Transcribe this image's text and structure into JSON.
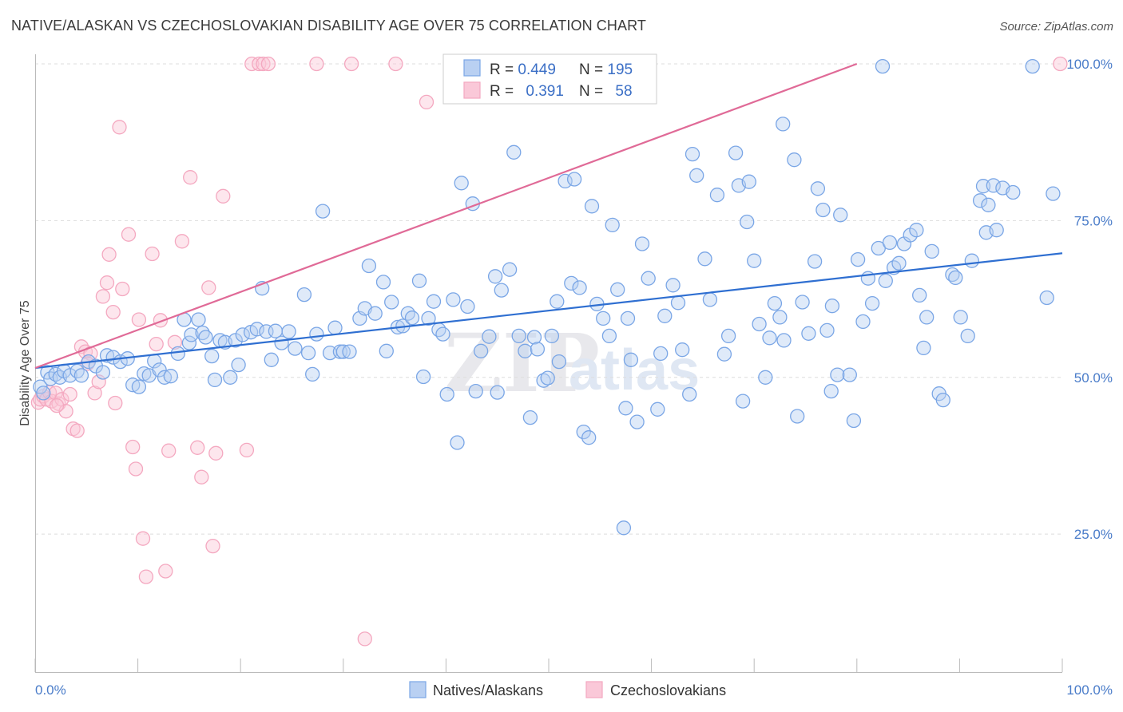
{
  "title": "NATIVE/ALASKAN VS CZECHOSLOVAKIAN DISABILITY AGE OVER 75 CORRELATION CHART",
  "source": "Source: ZipAtlas.com",
  "watermark": {
    "zip": "ZIP",
    "atlas": "atlas"
  },
  "chart_data": {
    "type": "scatter",
    "title": "NATIVE/ALASKAN VS CZECHOSLOVAKIAN DISABILITY AGE OVER 75 CORRELATION CHART",
    "xlabel": "",
    "ylabel": "Disability Age Over 75",
    "xlim": [
      0,
      100
    ],
    "ylim": [
      3,
      100
    ],
    "x_tick_labels": [
      "0.0%",
      "100.0%"
    ],
    "y_ticks": [
      25,
      50,
      75,
      100
    ],
    "y_tick_labels": [
      "25.0%",
      "50.0%",
      "75.0%",
      "100.0%"
    ],
    "grid": true,
    "legend_position": "top-center",
    "stats": [
      {
        "r_label": "R = ",
        "r_value": "0.449",
        "n_label": "N = ",
        "n_value": "195"
      },
      {
        "r_label": "R = ",
        "r_value": "0.391",
        "n_label": "N = ",
        "n_value": "58"
      }
    ],
    "series": [
      {
        "name": "Natives/Alaskans",
        "color": "#7aa6e6",
        "trend_color": "#2f6fd1",
        "trend": [
          [
            0,
            51.5
          ],
          [
            100,
            69.8
          ]
        ],
        "points": [
          [
            0.5,
            48.5
          ],
          [
            0.8,
            47.5
          ],
          [
            1.2,
            50.8
          ],
          [
            1.5,
            49.8
          ],
          [
            2,
            50.5
          ],
          [
            2.4,
            50
          ],
          [
            2.8,
            51
          ],
          [
            3.4,
            50.3
          ],
          [
            4.1,
            51
          ],
          [
            4.5,
            50.3
          ],
          [
            5.2,
            52.5
          ],
          [
            5.9,
            51.8
          ],
          [
            6.6,
            50.8
          ],
          [
            7,
            53.5
          ],
          [
            7.6,
            53.2
          ],
          [
            8.3,
            52.5
          ],
          [
            9,
            53
          ],
          [
            9.5,
            48.8
          ],
          [
            10.1,
            48.5
          ],
          [
            10.6,
            50.6
          ],
          [
            11.1,
            50.3
          ],
          [
            11.6,
            52.6
          ],
          [
            12.1,
            51.2
          ],
          [
            12.6,
            50
          ],
          [
            13.2,
            50.2
          ],
          [
            13.9,
            53.8
          ],
          [
            14.5,
            59.2
          ],
          [
            15,
            55.5
          ],
          [
            15.2,
            56.8
          ],
          [
            15.9,
            59.2
          ],
          [
            16.3,
            57.1
          ],
          [
            16.6,
            56.4
          ],
          [
            17.2,
            53.4
          ],
          [
            17.5,
            49.6
          ],
          [
            18,
            55.9
          ],
          [
            18.5,
            55.6
          ],
          [
            19,
            50
          ],
          [
            19.5,
            55.9
          ],
          [
            20.2,
            56.8
          ],
          [
            19.8,
            52
          ],
          [
            21,
            57.2
          ],
          [
            21.6,
            57.7
          ],
          [
            22.1,
            64.2
          ],
          [
            22.5,
            57.3
          ],
          [
            23,
            52.8
          ],
          [
            23.4,
            57.4
          ],
          [
            24,
            55.5
          ],
          [
            24.7,
            57.3
          ],
          [
            25.3,
            54.6
          ],
          [
            26.2,
            63.2
          ],
          [
            26.6,
            53.9
          ],
          [
            27,
            50.5
          ],
          [
            27.4,
            56.9
          ],
          [
            28,
            76.5
          ],
          [
            28.7,
            53.9
          ],
          [
            29.2,
            57.9
          ],
          [
            29.7,
            54.1
          ],
          [
            30,
            54.1
          ],
          [
            30.6,
            54.1
          ],
          [
            31.6,
            59.4
          ],
          [
            32.1,
            61
          ],
          [
            32.5,
            67.8
          ],
          [
            33.1,
            60.2
          ],
          [
            33.9,
            65.2
          ],
          [
            34.2,
            54.2
          ],
          [
            34.7,
            62
          ],
          [
            35.3,
            58
          ],
          [
            35.8,
            58.2
          ],
          [
            36.3,
            60.2
          ],
          [
            36.7,
            59.5
          ],
          [
            37.4,
            65.4
          ],
          [
            37.8,
            50.1
          ],
          [
            38.3,
            59.4
          ],
          [
            38.8,
            62.1
          ],
          [
            39.3,
            57.6
          ],
          [
            39.7,
            56.9
          ],
          [
            40.1,
            47.3
          ],
          [
            40.7,
            62.4
          ],
          [
            41.1,
            39.6
          ],
          [
            41.5,
            81
          ],
          [
            42.1,
            61.3
          ],
          [
            42.6,
            77.7
          ],
          [
            42.9,
            47.8
          ],
          [
            43.4,
            54.2
          ],
          [
            44.2,
            56.5
          ],
          [
            44.8,
            66.1
          ],
          [
            45,
            47.6
          ],
          [
            45.4,
            63.9
          ],
          [
            46.2,
            67.2
          ],
          [
            46.6,
            85.9
          ],
          [
            47.1,
            56.6
          ],
          [
            47.7,
            54.2
          ],
          [
            48.2,
            43.6
          ],
          [
            48.6,
            56.4
          ],
          [
            48.9,
            54.5
          ],
          [
            49.5,
            49.5
          ],
          [
            49.9,
            49.9
          ],
          [
            50.3,
            56.6
          ],
          [
            50.8,
            62.1
          ],
          [
            51,
            52.5
          ],
          [
            51.6,
            81.3
          ],
          [
            52.2,
            65
          ],
          [
            52.5,
            81.6
          ],
          [
            53,
            64.3
          ],
          [
            53.4,
            41.3
          ],
          [
            53.9,
            40.4
          ],
          [
            54.2,
            77.3
          ],
          [
            54.7,
            61.7
          ],
          [
            55.3,
            59.4
          ],
          [
            55.9,
            56.6
          ],
          [
            56.2,
            74.3
          ],
          [
            56.7,
            64
          ],
          [
            57.5,
            45.1
          ],
          [
            57.7,
            59.4
          ],
          [
            58,
            52.8
          ],
          [
            58.6,
            42.9
          ],
          [
            59.1,
            71.3
          ],
          [
            59.7,
            65.8
          ],
          [
            60.6,
            44.9
          ],
          [
            60.9,
            53.8
          ],
          [
            61.3,
            59.8
          ],
          [
            62.1,
            64.7
          ],
          [
            62.6,
            61.9
          ],
          [
            63,
            54.4
          ],
          [
            63.7,
            47.3
          ],
          [
            64,
            85.6
          ],
          [
            64.4,
            82.2
          ],
          [
            65.2,
            68.9
          ],
          [
            65.7,
            62.4
          ],
          [
            66.4,
            79.1
          ],
          [
            67.1,
            53.7
          ],
          [
            67.5,
            56.6
          ],
          [
            68.2,
            85.8
          ],
          [
            68.5,
            80.6
          ],
          [
            68.9,
            46.2
          ],
          [
            69.3,
            74.8
          ],
          [
            69.5,
            81.2
          ],
          [
            70,
            68.6
          ],
          [
            70.5,
            58.5
          ],
          [
            71.1,
            50
          ],
          [
            71.5,
            56.3
          ],
          [
            72,
            61.8
          ],
          [
            72.5,
            59.6
          ],
          [
            72.9,
            55.9
          ],
          [
            72.8,
            90.4
          ],
          [
            73.9,
            84.7
          ],
          [
            74.7,
            62
          ],
          [
            75.3,
            57
          ],
          [
            75.9,
            68.5
          ],
          [
            76.2,
            80.1
          ],
          [
            76.7,
            76.7
          ],
          [
            77.1,
            57.5
          ],
          [
            77.6,
            61.4
          ],
          [
            78.1,
            50.4
          ],
          [
            78.4,
            75.9
          ],
          [
            79.3,
            50.4
          ],
          [
            79.7,
            43.1
          ],
          [
            80.1,
            68.8
          ],
          [
            80.6,
            58.9
          ],
          [
            81.1,
            65.8
          ],
          [
            81.5,
            61.8
          ],
          [
            82.1,
            70.6
          ],
          [
            82.8,
            65.4
          ],
          [
            83.2,
            71.5
          ],
          [
            83.6,
            67.5
          ],
          [
            84.1,
            68.2
          ],
          [
            84.6,
            71.3
          ],
          [
            85.2,
            72.7
          ],
          [
            85.8,
            73.5
          ],
          [
            86.1,
            63.1
          ],
          [
            86.5,
            54.7
          ],
          [
            86.8,
            59.6
          ],
          [
            87.3,
            70.1
          ],
          [
            88,
            47.4
          ],
          [
            88.4,
            46.4
          ],
          [
            89.3,
            66.4
          ],
          [
            89.6,
            65.9
          ],
          [
            90.1,
            59.6
          ],
          [
            90.8,
            56.6
          ],
          [
            91.2,
            68.6
          ],
          [
            92,
            78.2
          ],
          [
            92.3,
            80.5
          ],
          [
            92.6,
            73.1
          ],
          [
            92.8,
            77.5
          ],
          [
            93.3,
            80.6
          ],
          [
            93.6,
            73.5
          ],
          [
            94.2,
            80.2
          ],
          [
            95.2,
            79.5
          ],
          [
            98.5,
            62.7
          ],
          [
            99.1,
            79.3
          ],
          [
            82.5,
            99.6
          ],
          [
            97.1,
            99.6
          ],
          [
            77.5,
            47.8
          ],
          [
            74.2,
            43.8
          ],
          [
            57.3,
            26
          ]
        ]
      },
      {
        "name": "Czechoslovakians",
        "color": "#f4a8c0",
        "trend_color": "#e06a97",
        "trend": [
          [
            0,
            51.5
          ],
          [
            80,
            100
          ]
        ],
        "points": [
          [
            0.3,
            46
          ],
          [
            0.5,
            46.5
          ],
          [
            0.8,
            47
          ],
          [
            1.1,
            46.5
          ],
          [
            1.4,
            47.6
          ],
          [
            1.6,
            46.2
          ],
          [
            2,
            47.5
          ],
          [
            2.3,
            45.8
          ],
          [
            2.6,
            46.5
          ],
          [
            3,
            44.6
          ],
          [
            3.4,
            47.3
          ],
          [
            3.7,
            41.8
          ],
          [
            4.1,
            41.5
          ],
          [
            4.5,
            54.9
          ],
          [
            4.9,
            54.1
          ],
          [
            5.4,
            53.8
          ],
          [
            5.8,
            47.5
          ],
          [
            6.2,
            49.3
          ],
          [
            6.6,
            62.9
          ],
          [
            7,
            65.1
          ],
          [
            7.2,
            69.6
          ],
          [
            7.6,
            60.4
          ],
          [
            8.2,
            89.9
          ],
          [
            8.5,
            64.1
          ],
          [
            9.1,
            72.8
          ],
          [
            9.5,
            38.9
          ],
          [
            9.8,
            35.4
          ],
          [
            10.1,
            59.2
          ],
          [
            10.5,
            24.3
          ],
          [
            10.8,
            18.2
          ],
          [
            11.4,
            69.7
          ],
          [
            11.8,
            55.3
          ],
          [
            12.2,
            59.1
          ],
          [
            12.7,
            19.1
          ],
          [
            13,
            38.3
          ],
          [
            13.6,
            55.6
          ],
          [
            14.3,
            71.7
          ],
          [
            15.1,
            81.9
          ],
          [
            15.8,
            38.8
          ],
          [
            16.2,
            34.1
          ],
          [
            16.9,
            64.3
          ],
          [
            17.3,
            23.1
          ],
          [
            17.6,
            37.9
          ],
          [
            18.3,
            78.9
          ],
          [
            20.6,
            38.4
          ],
          [
            21.1,
            100
          ],
          [
            21.8,
            100
          ],
          [
            22.2,
            100
          ],
          [
            22.7,
            100
          ],
          [
            27.4,
            100
          ],
          [
            30.8,
            100
          ],
          [
            35.1,
            100
          ],
          [
            38.1,
            93.9
          ],
          [
            32.1,
            8.3
          ],
          [
            99.8,
            100
          ],
          [
            7.8,
            45.9
          ],
          [
            5.1,
            52.2
          ],
          [
            2.1,
            45.5
          ]
        ]
      }
    ]
  }
}
